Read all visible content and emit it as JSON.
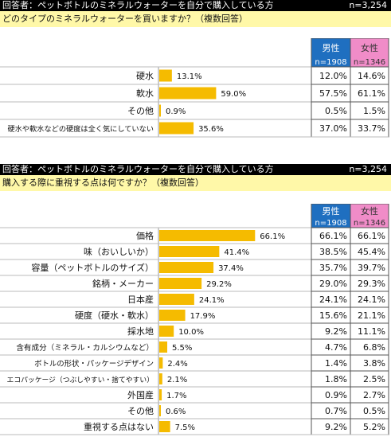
{
  "section1": {
    "header_left": "回答者：ペットボトルのミネラルウォーターを自分で購入している方",
    "header_right": "n=3,254",
    "question": "どのタイプのミネラルウォーターを買いますか？（複数回答）",
    "male_label": "男性",
    "male_n": "n=1908",
    "female_label": "女性",
    "female_n": "n=1346"
  },
  "section2": {
    "header_left": "回答者：ペットボトルのミネラルウォーターを自分で購入している方",
    "header_right": "n=3,254",
    "question": "購入する際に重視する点は何ですか？（複数回答）",
    "male_label": "男性",
    "male_n": "n=1908",
    "female_label": "女性",
    "female_n": "n=1346"
  },
  "colors": {
    "bar": "#f5bb00",
    "male": "#1f6fc0",
    "female": "#f08cc8",
    "question_bg": "#fff8a8"
  },
  "chart_data": [
    {
      "type": "bar",
      "title": "どのタイプのミネラルウォーターを買いますか？（複数回答）",
      "orientation": "horizontal",
      "categories": [
        "硬水",
        "軟水",
        "その他",
        "硬水や軟水などの硬度は全く気にしていない"
      ],
      "values": [
        13.1,
        59.0,
        0.9,
        35.6
      ],
      "value_labels": [
        "13.1%",
        "59.0%",
        "0.9%",
        "35.6%"
      ],
      "xlim": [
        0,
        100
      ],
      "table": {
        "male": [
          "12.0%",
          "57.5%",
          "0.5%",
          "37.0%"
        ],
        "female": [
          "14.6%",
          "61.1%",
          "1.5%",
          "33.7%"
        ]
      }
    },
    {
      "type": "bar",
      "title": "購入する際に重視する点は何ですか？（複数回答）",
      "orientation": "horizontal",
      "categories": [
        "価格",
        "味（おいしいか）",
        "容量（ペットボトルのサイズ）",
        "銘柄・メーカー",
        "日本産",
        "硬度（硬水・軟水）",
        "採水地",
        "含有成分（ミネラル・カルシウムなど）",
        "ボトルの形状・パッケージデザイン",
        "エコパッケージ（つぶしやすい・捨てやすい）",
        "外国産",
        "その他",
        "重視する点はない"
      ],
      "values": [
        66.1,
        41.4,
        37.4,
        29.2,
        24.1,
        17.9,
        10.0,
        5.5,
        2.4,
        2.1,
        1.7,
        0.6,
        7.5
      ],
      "value_labels": [
        "66.1%",
        "41.4%",
        "37.4%",
        "29.2%",
        "24.1%",
        "17.9%",
        "10.0%",
        "5.5%",
        "2.4%",
        "2.1%",
        "1.7%",
        "0.6%",
        "7.5%"
      ],
      "xlim": [
        0,
        100
      ],
      "table": {
        "male": [
          "66.1%",
          "38.5%",
          "35.7%",
          "29.0%",
          "24.1%",
          "15.6%",
          "9.2%",
          "4.7%",
          "1.4%",
          "1.8%",
          "0.9%",
          "0.7%",
          "9.2%"
        ],
        "female": [
          "66.1%",
          "45.4%",
          "39.7%",
          "29.3%",
          "24.1%",
          "21.1%",
          "11.1%",
          "6.8%",
          "3.8%",
          "2.5%",
          "2.7%",
          "0.5%",
          "5.2%"
        ]
      }
    }
  ]
}
